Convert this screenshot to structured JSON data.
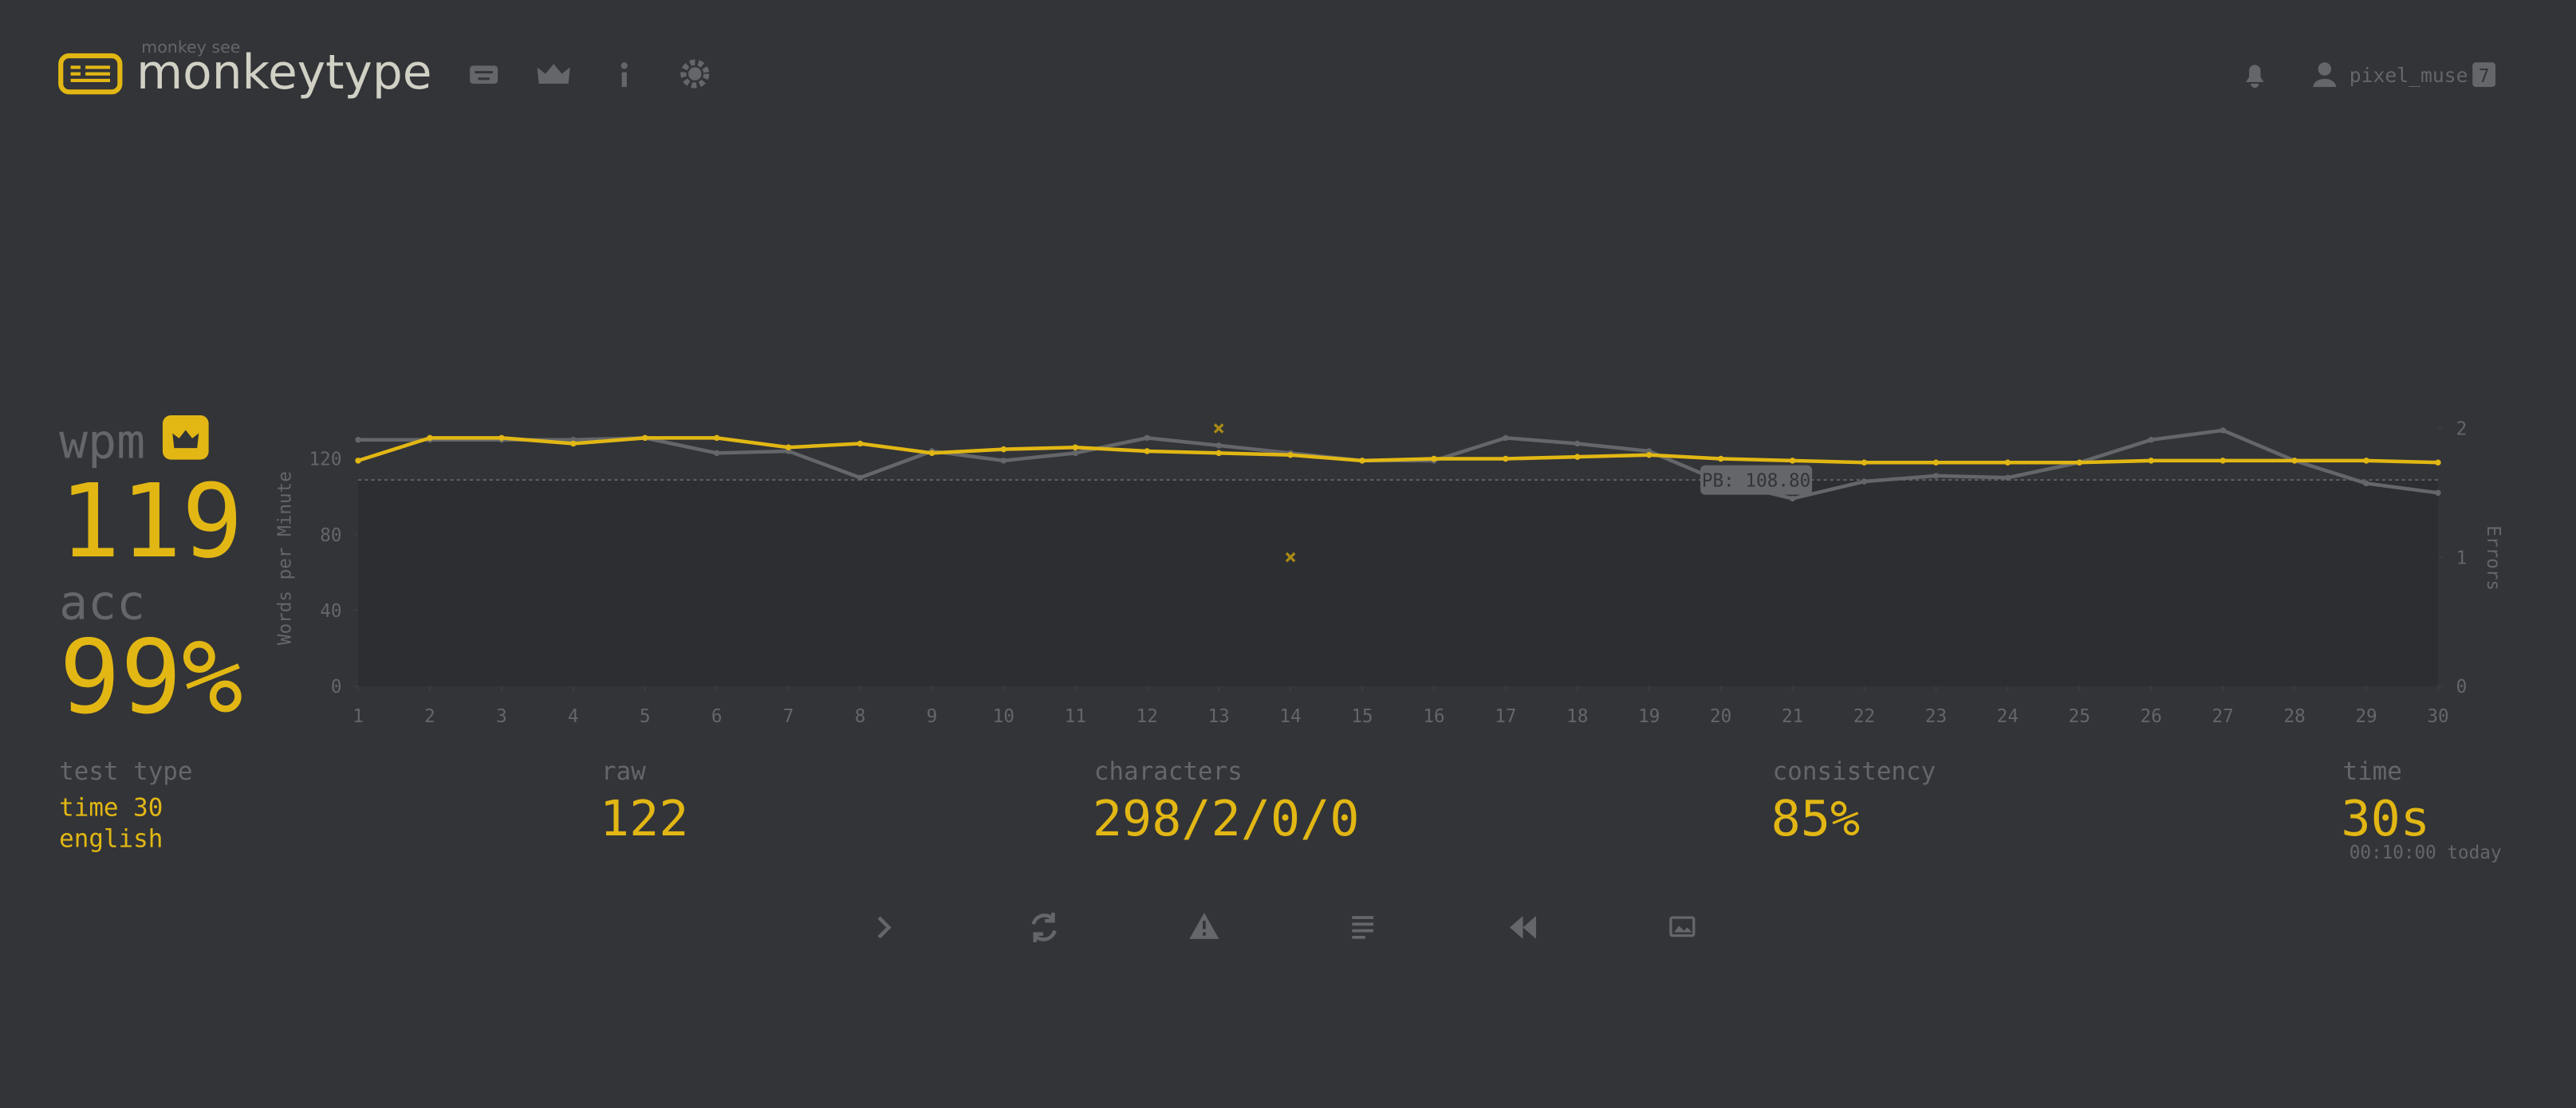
{
  "header": {
    "subtitle": "monkey see",
    "title": "monkeytype",
    "user": "pixel_muse",
    "level": "7"
  },
  "stats": {
    "wpm": {
      "label": "wpm",
      "value": "119"
    },
    "acc": {
      "label": "acc",
      "value": "99%"
    },
    "test_type": {
      "label": "test type",
      "lines": [
        "time 30",
        "english"
      ]
    },
    "raw": {
      "label": "raw",
      "value": "122"
    },
    "characters": {
      "label": "characters",
      "value": "298/2/0/0"
    },
    "consistency": {
      "label": "consistency",
      "value": "85%"
    },
    "time": {
      "label": "time",
      "value": "30s",
      "note": "00:10:00 today"
    }
  },
  "chart_data": {
    "type": "line",
    "ylabel": "Words per Minute",
    "y2label": "Errors",
    "x": [
      1,
      2,
      3,
      4,
      5,
      6,
      7,
      8,
      9,
      10,
      11,
      12,
      13,
      14,
      15,
      16,
      17,
      18,
      19,
      20,
      21,
      22,
      23,
      24,
      25,
      26,
      27,
      28,
      29,
      30
    ],
    "xlim": [
      1,
      30
    ],
    "xticks": [
      1,
      2,
      3,
      4,
      5,
      6,
      7,
      8,
      9,
      10,
      11,
      12,
      13,
      14,
      15,
      16,
      17,
      18,
      19,
      20,
      21,
      22,
      23,
      24,
      25,
      26,
      27,
      28,
      29,
      30
    ],
    "ylim": [
      0,
      136
    ],
    "yticks": [
      0,
      40,
      80,
      120
    ],
    "y2lim": [
      0,
      2
    ],
    "y2ticks": [
      0,
      1,
      2
    ],
    "series": [
      {
        "color": "#646669",
        "values": [
          130,
          130,
          130,
          130,
          131,
          123,
          124,
          110,
          124,
          119,
          123,
          131,
          127,
          123,
          119,
          119,
          131,
          128,
          124,
          108,
          99,
          108,
          111,
          110,
          118,
          130,
          135,
          119,
          107,
          102
        ]
      },
      {
        "color": "#e2b714",
        "values": [
          119,
          131,
          131,
          128,
          131,
          131,
          126,
          128,
          123,
          125,
          126,
          124,
          123,
          122,
          119,
          120,
          120,
          121,
          122,
          120,
          119,
          118,
          118,
          118,
          118,
          119,
          119,
          119,
          119,
          118
        ]
      },
      {
        "type": "scatter",
        "axis": "y2",
        "color": "#a88a14",
        "values": [
          null,
          null,
          null,
          null,
          null,
          null,
          null,
          null,
          null,
          null,
          null,
          null,
          2,
          1,
          null,
          null,
          null,
          null,
          null,
          null,
          null,
          null,
          null,
          null,
          null,
          null,
          null,
          null,
          null,
          null
        ]
      }
    ],
    "annotation": {
      "label": "PB: 108.80",
      "value": 108.8
    }
  }
}
